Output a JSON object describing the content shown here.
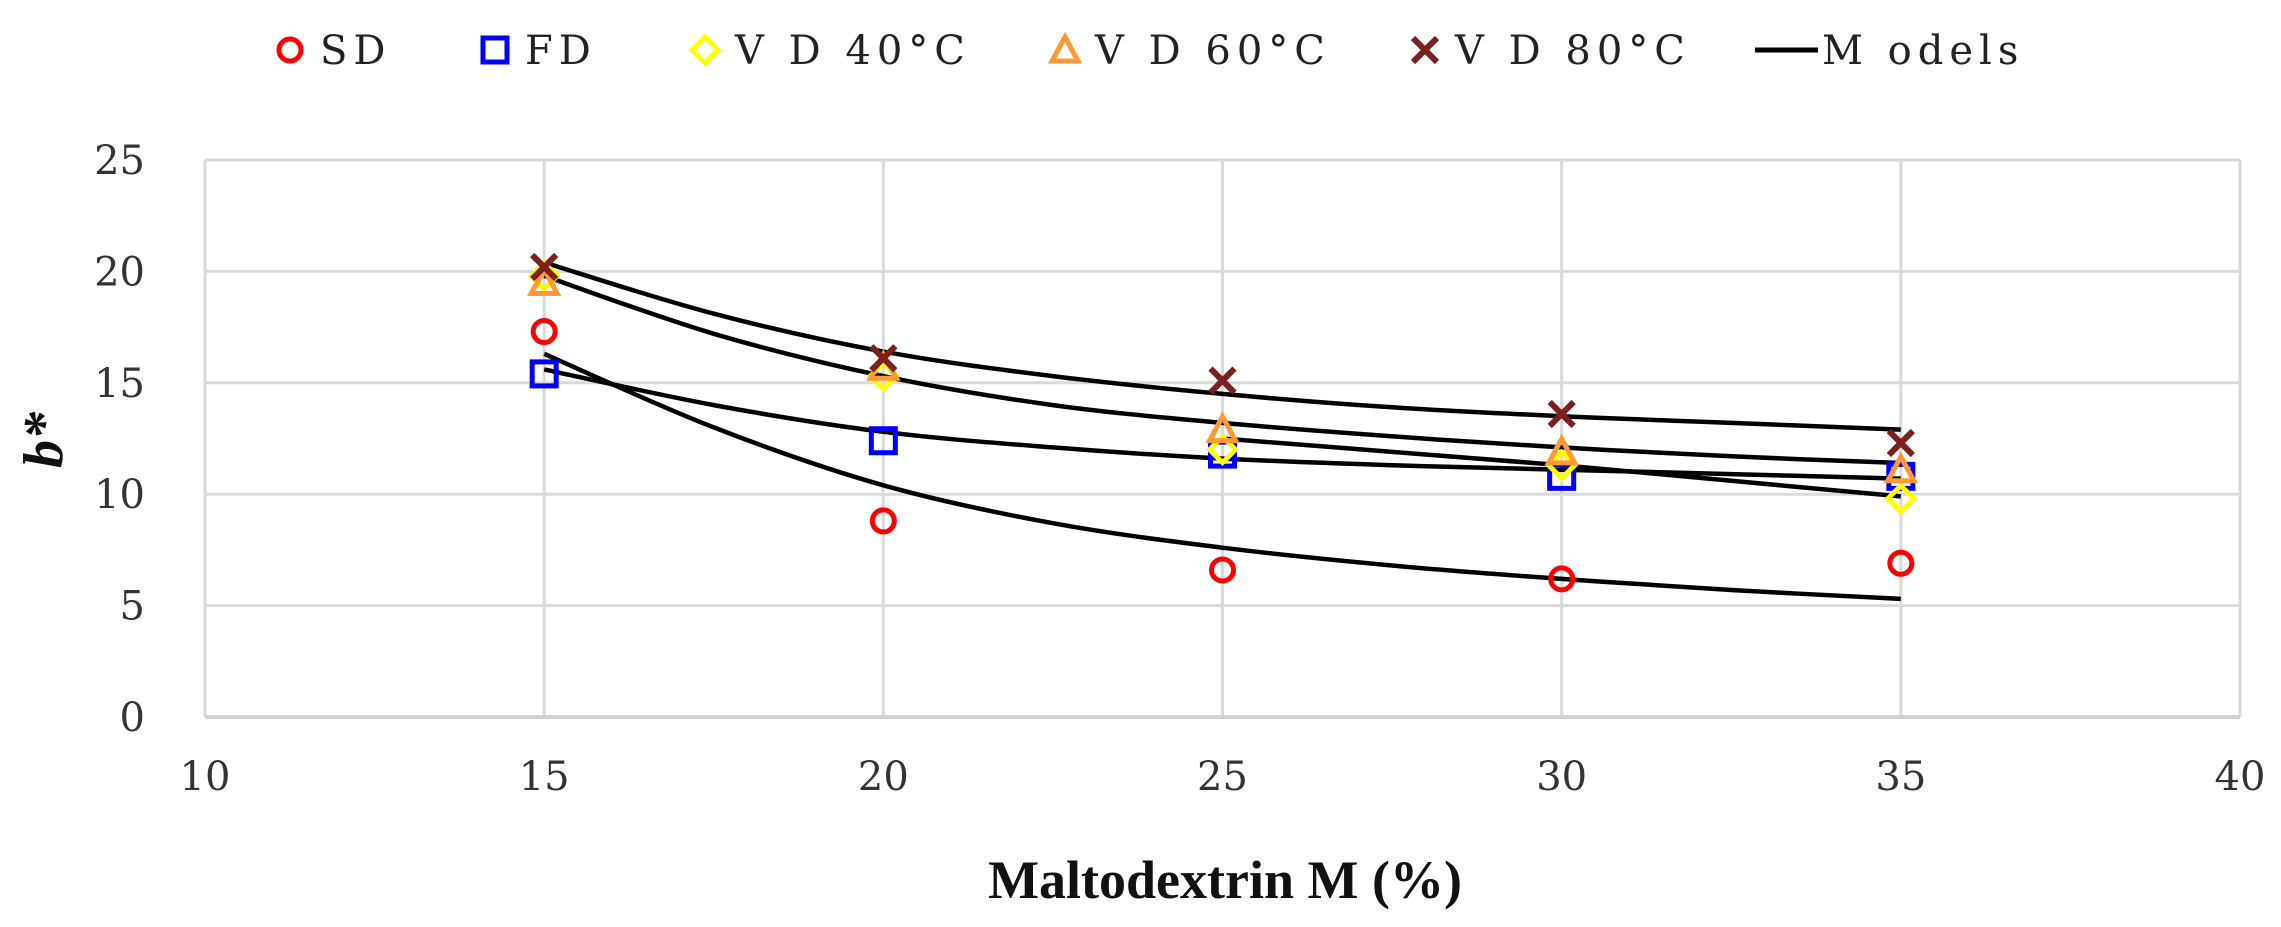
{
  "chart_data": {
    "type": "scatter",
    "title": "",
    "xlabel": "Maltodextrin M (%)",
    "ylabel": "b*",
    "xlim": [
      10,
      40
    ],
    "ylim": [
      0,
      25
    ],
    "xticks": [
      10,
      15,
      20,
      25,
      30,
      35,
      40
    ],
    "yticks": [
      0,
      5,
      10,
      15,
      20,
      25
    ],
    "grid": true,
    "legend_position": "top",
    "series": [
      {
        "name": "SD",
        "marker": "circle",
        "color": "#ff0000",
        "x": [
          15,
          20,
          25,
          30,
          35
        ],
        "y": [
          17.3,
          8.8,
          6.6,
          6.2,
          6.9
        ]
      },
      {
        "name": "FD",
        "marker": "square",
        "color": "#0000ff",
        "x": [
          15,
          20,
          25,
          30,
          35
        ],
        "y": [
          15.4,
          12.4,
          11.8,
          10.8,
          10.8
        ]
      },
      {
        "name": "V D 40°C",
        "marker": "diamond",
        "color": "#ffff00",
        "x": [
          15,
          20,
          25,
          30,
          35
        ],
        "y": [
          19.8,
          15.3,
          12.0,
          11.3,
          9.8
        ]
      },
      {
        "name": "V D 60°C",
        "marker": "triangle",
        "color": "#ff9933",
        "x": [
          15,
          20,
          25,
          30,
          35
        ],
        "y": [
          19.5,
          15.7,
          12.9,
          11.9,
          11.1
        ]
      },
      {
        "name": "V D 80°C",
        "marker": "x",
        "color": "#7b1f1f",
        "x": [
          15,
          20,
          25,
          30,
          35
        ],
        "y": [
          20.2,
          16.1,
          15.1,
          13.6,
          12.3
        ]
      }
    ],
    "models": {
      "name": "M odels",
      "color": "#000000",
      "curves": [
        {
          "x": [
            15,
            17.5,
            20,
            22.5,
            25,
            27.5,
            30,
            32.5,
            35
          ],
          "y": [
            16.3,
            13.0,
            10.4,
            8.7,
            7.6,
            6.8,
            6.2,
            5.7,
            5.3
          ]
        },
        {
          "x": [
            15,
            17.5,
            20,
            22.5,
            25,
            27.5,
            30,
            32.5,
            35
          ],
          "y": [
            15.6,
            14.0,
            12.8,
            12.1,
            11.6,
            11.3,
            11.1,
            10.9,
            10.7
          ]
        },
        {
          "x": [
            25,
            27.5,
            30,
            32.5,
            35
          ],
          "y": [
            12.5,
            11.9,
            11.3,
            10.6,
            9.9
          ]
        },
        {
          "x": [
            15,
            17.5,
            20,
            22.5,
            25,
            27.5,
            30,
            32.5,
            35
          ],
          "y": [
            19.8,
            17.2,
            15.3,
            14.0,
            13.2,
            12.6,
            12.1,
            11.7,
            11.4
          ]
        },
        {
          "x": [
            15,
            17.5,
            20,
            22.5,
            25,
            27.5,
            30,
            32.5,
            35
          ],
          "y": [
            20.4,
            18.1,
            16.4,
            15.3,
            14.5,
            13.9,
            13.5,
            13.2,
            12.9
          ]
        }
      ]
    }
  }
}
